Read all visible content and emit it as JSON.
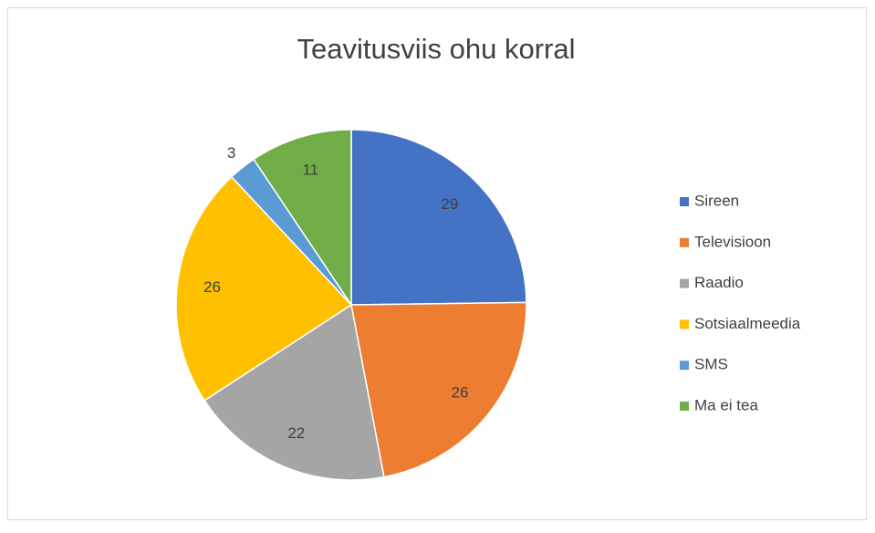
{
  "chart_data": {
    "type": "pie",
    "title": "Teavitusviis ohu korral",
    "categories": [
      "Sireen",
      "Televisioon",
      "Raadio",
      "Sotsiaalmeedia",
      "SMS",
      "Ma ei tea"
    ],
    "values": [
      29,
      26,
      22,
      26,
      3,
      11
    ],
    "colors": [
      "#4472c4",
      "#ed7d31",
      "#a5a5a5",
      "#ffc000",
      "#5b9bd5",
      "#70ad47"
    ],
    "legend": "right"
  }
}
